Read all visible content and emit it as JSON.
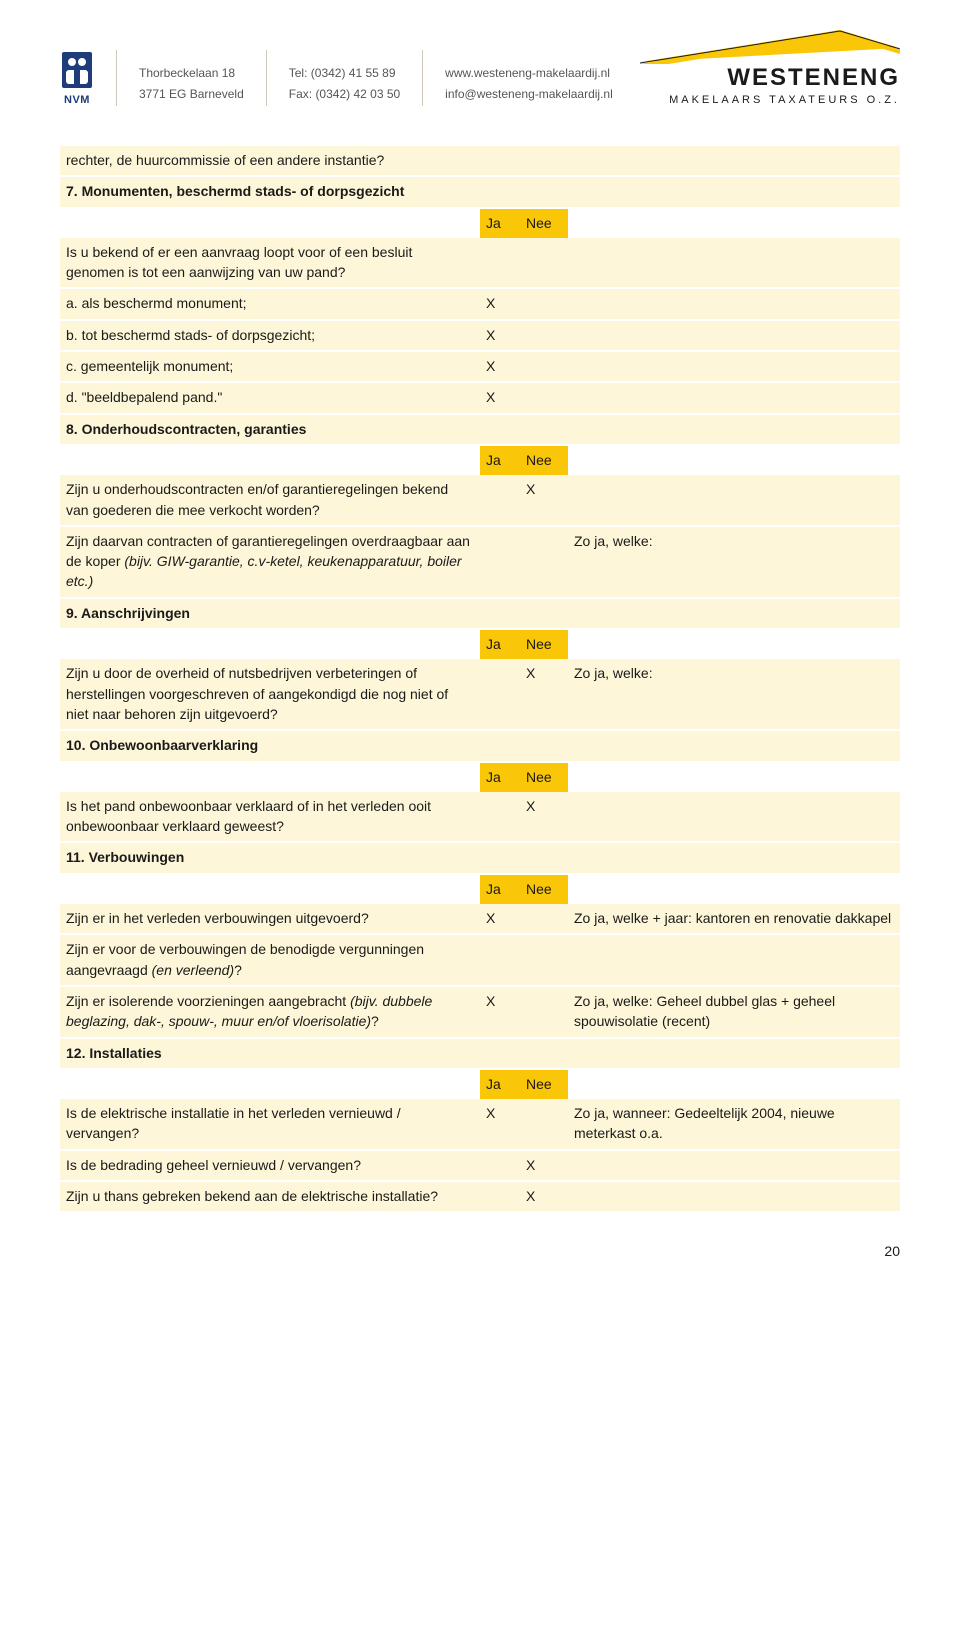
{
  "header": {
    "nvm_label": "NVM",
    "address_line1": "Thorbeckelaan 18",
    "address_line2": "3771 EG Barneveld",
    "tel_label": "Tel:",
    "tel_value": "(0342) 41 55 89",
    "fax_label": "Fax:",
    "fax_value": "(0342) 42 03 50",
    "web": "www.westeneng-makelaardij.nl",
    "email": "info@westeneng-makelaardij.nl",
    "brand_name": "WESTENENG",
    "brand_sub": "MAKELAARS  TAXATEURS  O.Z."
  },
  "ja_label": "Ja",
  "nee_label": "Nee",
  "x_mark": "X",
  "page_number": "20",
  "rows": [
    {
      "type": "q",
      "q": "rechter, de huurcommissie of een andere instantie?",
      "ja": "",
      "nee": "",
      "note": ""
    },
    {
      "type": "sect",
      "q": "7. Monumenten, beschermd stads- of dorpsgezicht"
    },
    {
      "type": "hdr"
    },
    {
      "type": "q",
      "q": "Is u bekend of er een aanvraag loopt voor of een besluit genomen is tot een aanwijzing van uw pand?",
      "ja": "",
      "nee": "",
      "note": ""
    },
    {
      "type": "q",
      "q": "a. als beschermd monument;",
      "ja": "X",
      "nee": "",
      "note": ""
    },
    {
      "type": "q",
      "q": "b. tot beschermd stads- of dorpsgezicht;",
      "ja": "X",
      "nee": "",
      "note": ""
    },
    {
      "type": "q",
      "q": "c. gemeentelijk monument;",
      "ja": "X",
      "nee": "",
      "note": ""
    },
    {
      "type": "q",
      "q": "d. \"beeldbepalend pand.\"",
      "ja": "X",
      "nee": "",
      "note": ""
    },
    {
      "type": "sect",
      "q": "8. Onderhoudscontracten, garanties"
    },
    {
      "type": "hdr"
    },
    {
      "type": "q",
      "q": "Zijn u onderhoudscontracten en/of garantieregelingen bekend van goederen die mee verkocht worden?",
      "ja": "",
      "nee": "X",
      "note": ""
    },
    {
      "type": "q",
      "q_html": "Zijn daarvan contracten of garantieregelingen overdraagbaar aan de koper <span class=\"italic\">(bijv. GIW-garantie, c.v-ketel, keukenapparatuur, boiler etc.)</span>",
      "ja": "",
      "nee": "",
      "note": "Zo ja, welke:"
    },
    {
      "type": "sect",
      "q": "9. Aanschrijvingen"
    },
    {
      "type": "hdr"
    },
    {
      "type": "q",
      "q": "Zijn u door de overheid of nutsbedrijven verbeteringen of herstellingen voorgeschreven of aangekondigd die nog niet of niet naar behoren zijn uitgevoerd?",
      "ja": "",
      "nee": "X",
      "note": "Zo ja, welke:"
    },
    {
      "type": "sect",
      "q": "10. Onbewoonbaarverklaring"
    },
    {
      "type": "hdr"
    },
    {
      "type": "q",
      "q": "Is het pand onbewoonbaar verklaard of in het verleden ooit onbewoonbaar verklaard geweest?",
      "ja": "",
      "nee": "X",
      "note": ""
    },
    {
      "type": "sect",
      "q": "11. Verbouwingen"
    },
    {
      "type": "hdr"
    },
    {
      "type": "q",
      "q": "Zijn er in het verleden verbouwingen uitgevoerd?",
      "ja": "X",
      "nee": "",
      "note": "Zo ja, welke + jaar: kantoren en renovatie dakkapel"
    },
    {
      "type": "q",
      "q_html": "Zijn er voor de verbouwingen de benodigde vergunningen aangevraagd <span class=\"italic\">(en verleend)</span>?",
      "ja": "",
      "nee": "",
      "note": ""
    },
    {
      "type": "q",
      "q_html": "Zijn er isolerende voorzieningen aangebracht <span class=\"italic\">(bijv. dubbele beglazing, dak-, spouw-, muur en/of vloerisolatie)</span>?",
      "ja": "X",
      "nee": "",
      "note": "Zo ja, welke: Geheel dubbel glas + geheel spouwisolatie (recent)"
    },
    {
      "type": "sect",
      "q": "12. Installaties"
    },
    {
      "type": "hdr"
    },
    {
      "type": "q",
      "q": "Is de elektrische installatie in het verleden vernieuwd / vervangen?",
      "ja": "X",
      "nee": "",
      "note": "Zo ja, wanneer: Gedeeltelijk 2004, nieuwe meterkast o.a."
    },
    {
      "type": "q",
      "q": "Is de bedrading geheel vernieuwd / vervangen?",
      "ja": "",
      "nee": "X",
      "note": ""
    },
    {
      "type": "q",
      "q": "Zijn u thans gebreken bekend aan de elektrische installatie?",
      "ja": "",
      "nee": "X",
      "note": ""
    }
  ]
}
